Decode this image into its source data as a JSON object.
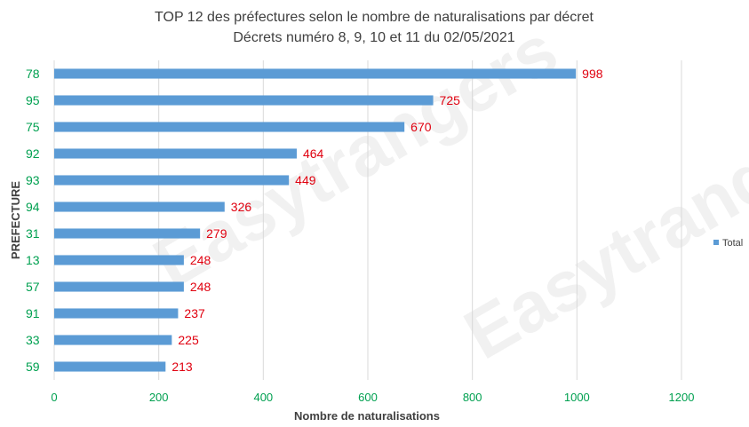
{
  "chart_data": {
    "type": "bar",
    "orientation": "horizontal",
    "title": "TOP 12 des préfectures selon le nombre de naturalisations par décret",
    "subtitle": "Décrets numéro 8, 9, 10 et 11 du 02/05/2021",
    "xlabel": "Nombre de naturalisations",
    "ylabel": "PREFECTURE",
    "categories": [
      "78",
      "95",
      "75",
      "92",
      "93",
      "94",
      "31",
      "13",
      "57",
      "91",
      "33",
      "59"
    ],
    "series": [
      {
        "name": "Total",
        "values": [
          998,
          725,
          670,
          464,
          449,
          326,
          279,
          248,
          248,
          237,
          225,
          213
        ]
      }
    ],
    "data_labels": [
      "998",
      "725",
      "670",
      "464",
      "449",
      "326",
      "279",
      "248",
      "248",
      "237",
      "225",
      "213"
    ],
    "xlim": [
      0,
      1200
    ],
    "xticks": [
      0,
      200,
      400,
      600,
      800,
      1000,
      1200
    ],
    "xtick_labels": [
      "0",
      "200",
      "400",
      "600",
      "800",
      "1000",
      "1200"
    ],
    "grid": "vertical",
    "legend_position": "right",
    "colors": {
      "bar": "#5b9bd5",
      "data_label": "#e0000f",
      "tick_label": "#00a050",
      "grid": "#d9d9d9"
    }
  }
}
